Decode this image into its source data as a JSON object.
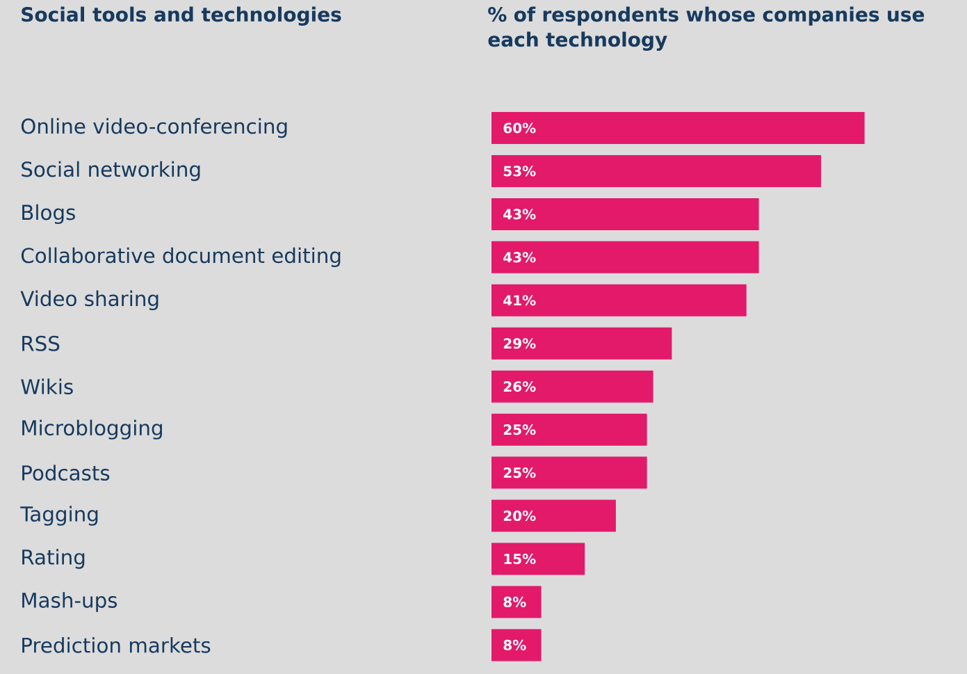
{
  "chart_data": {
    "type": "bar",
    "orientation": "horizontal",
    "title": "% of respondents whose companies use each technology",
    "annotations": [
      "Social tools and technologies"
    ],
    "categories": [
      "Online video-conferencing",
      "Social networking",
      "Blogs",
      "Collaborative document editing",
      "Video sharing",
      "RSS",
      "Wikis",
      "Microblogging",
      "Podcasts",
      "Tagging",
      "Rating",
      "Mash-ups",
      "Prediction markets"
    ],
    "values": [
      60,
      53,
      43,
      43,
      41,
      29,
      26,
      25,
      25,
      20,
      15,
      8,
      8
    ],
    "value_labels": [
      "60%",
      "53%",
      "43%",
      "43%",
      "41%",
      "29%",
      "26%",
      "25%",
      "25%",
      "20%",
      "15%",
      "8%",
      "8%"
    ],
    "color": "#e3196a"
  }
}
